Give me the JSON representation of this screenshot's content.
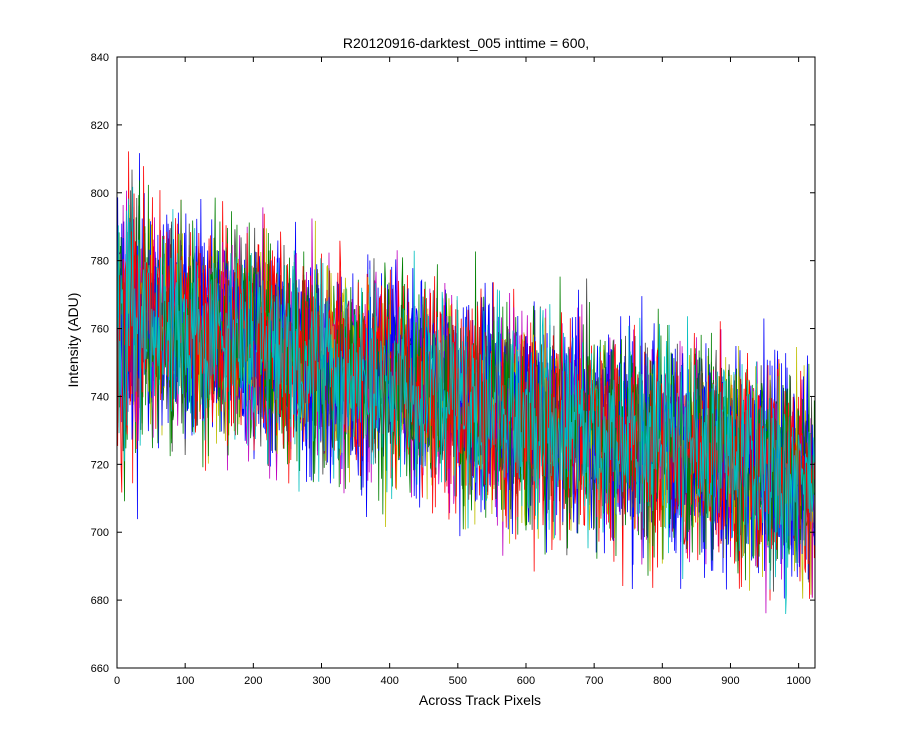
{
  "chart_data": {
    "type": "line",
    "title": "R20120916-darktest_005 inttime = 600,",
    "xlabel": "Across Track Pixels",
    "ylabel": "Intensity (ADU)",
    "xlim": [
      0,
      1024
    ],
    "ylim": [
      660,
      840
    ],
    "xticks": [
      0,
      100,
      200,
      300,
      400,
      500,
      600,
      700,
      800,
      900,
      1000
    ],
    "yticks": [
      660,
      680,
      700,
      720,
      740,
      760,
      780,
      800,
      820,
      840
    ],
    "grid": false,
    "legend": "none",
    "n_points": 1024,
    "trend": {
      "x": [
        0,
        100,
        200,
        300,
        400,
        500,
        600,
        700,
        800,
        900,
        1024
      ],
      "y": [
        764,
        760,
        755,
        751,
        745,
        740,
        735,
        730,
        727,
        722,
        716
      ]
    },
    "noise_amplitude": 15,
    "series": [
      {
        "color": "#0000ff",
        "seed": 11
      },
      {
        "color": "#008000",
        "seed": 23
      },
      {
        "color": "#ff0000",
        "seed": 37
      },
      {
        "color": "#bf00bf",
        "seed": 41
      },
      {
        "color": "#bfbf00",
        "seed": 53
      },
      {
        "color": "#404040",
        "seed": 67
      },
      {
        "color": "#0000ff",
        "seed": 71
      },
      {
        "color": "#008000",
        "seed": 83
      },
      {
        "color": "#ff0000",
        "seed": 97
      },
      {
        "color": "#00bfbf",
        "seed": 101
      }
    ]
  }
}
